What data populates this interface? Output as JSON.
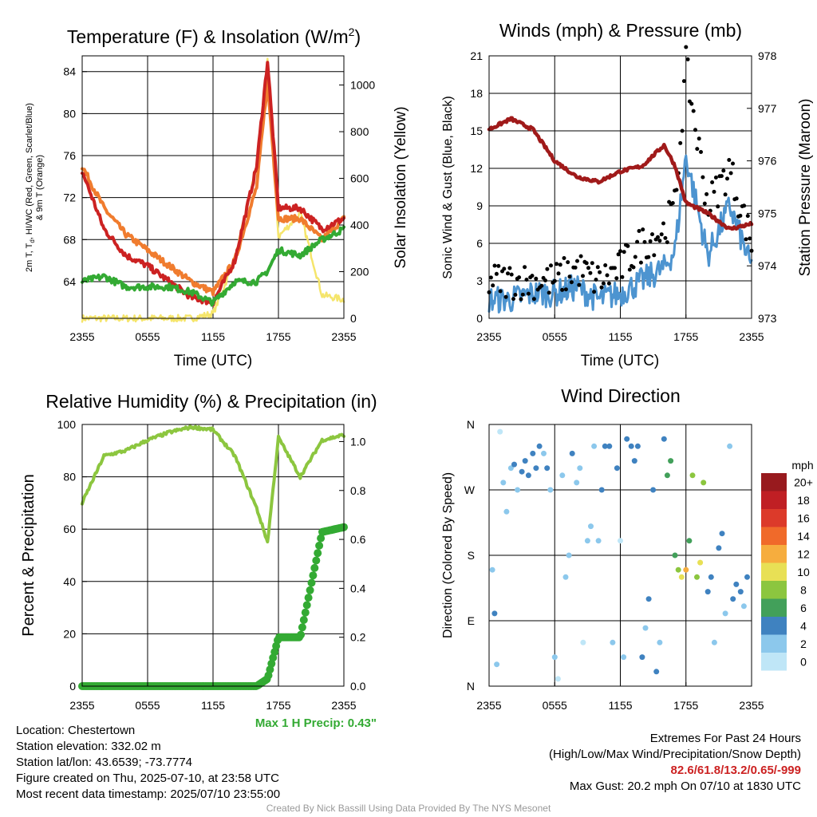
{
  "time_ticks": [
    "2355",
    "0555",
    "1155",
    "1755",
    "2355"
  ],
  "colors": {
    "temperature": "#cc2222",
    "dewpoint": "#33aa33",
    "nine_m_temp": "#f07c2e",
    "solar": "#f5e56b",
    "wind": "#4d94d0",
    "gust": "#000000",
    "pressure": "#a01a1a",
    "rh": "#8cc63f",
    "precip": "#33aa33"
  },
  "charts": {
    "temp": {
      "title_main": "Temperature (F) & Insolation (W/m",
      "title_sup": "2",
      "title_end": ")",
      "ylabel_line1": "2m T, T",
      "ylabel_sub": "d",
      "ylabel_line1_end": ", HI/WC (Red, Green, Scarlet/Blue)",
      "ylabel_line2": "& 9m T (Orange)",
      "y2label": "Solar Insolation (Yellow)",
      "xlabel": "Time (UTC)",
      "yticks": [
        "64",
        "68",
        "72",
        "76",
        "80",
        "84"
      ],
      "y2ticks": [
        "0",
        "200",
        "400",
        "600",
        "800",
        "1000"
      ]
    },
    "winds": {
      "title": "Winds (mph) & Pressure (mb)",
      "ylabel": "Sonic Wind & Gust (Blue, Black)",
      "y2label": "Station Pressure (Maroon)",
      "xlabel": "Time (UTC)",
      "yticks": [
        "0",
        "3",
        "6",
        "9",
        "12",
        "15",
        "18",
        "21"
      ],
      "y2ticks": [
        "973",
        "974",
        "975",
        "976",
        "977",
        "978"
      ]
    },
    "rh": {
      "title": "Relative Humidity (%) & Precipitation (in)",
      "ylabel": "Percent & Precipitation",
      "yticks": [
        "0",
        "20",
        "40",
        "60",
        "80",
        "100"
      ],
      "y2ticks": [
        "0.0",
        "0.2",
        "0.4",
        "0.6",
        "0.8",
        "1.0"
      ],
      "max_precip_label": "Max 1 H Precip: 0.43\""
    },
    "wdir": {
      "title": "Wind Direction",
      "ylabel": "Direction (Colored By Speed)",
      "yticks": [
        "N",
        "E",
        "S",
        "W",
        "N"
      ],
      "legend_title": "mph",
      "legend": [
        {
          "label": "0",
          "color": "#bfe6f7"
        },
        {
          "label": "2",
          "color": "#8cc8ec"
        },
        {
          "label": "4",
          "color": "#3f82c0"
        },
        {
          "label": "6",
          "color": "#42a05a"
        },
        {
          "label": "8",
          "color": "#8cc63f"
        },
        {
          "label": "10",
          "color": "#e8e055"
        },
        {
          "label": "12",
          "color": "#f6ad3e"
        },
        {
          "label": "14",
          "color": "#f06a2a"
        },
        {
          "label": "16",
          "color": "#dc3a2a"
        },
        {
          "label": "18",
          "color": "#c01f24"
        },
        {
          "label": "20+",
          "color": "#981a1e"
        }
      ]
    }
  },
  "chart_data": [
    {
      "type": "line",
      "title": "Temperature (F) & Insolation (W/m2)",
      "x": [
        0,
        2,
        4,
        6,
        8,
        10,
        12,
        14,
        16,
        17,
        18,
        20,
        22,
        24
      ],
      "xlabel": "Time (UTC)",
      "ylim": [
        60.5,
        85.5
      ],
      "y2lim": [
        0,
        1125
      ],
      "series": [
        {
          "name": "2m T",
          "values": [
            74.5,
            69,
            66.5,
            65.5,
            64,
            62.5,
            62,
            66,
            75,
            85,
            71,
            71,
            69,
            70
          ]
        },
        {
          "name": "9m T",
          "values": [
            75,
            71,
            68.5,
            67,
            65.5,
            64,
            63,
            66,
            73,
            83,
            70,
            70,
            68,
            70
          ]
        },
        {
          "name": "Dewpoint",
          "values": [
            64,
            64.5,
            63.5,
            63.5,
            63.5,
            63,
            62,
            64,
            64,
            65,
            67,
            66.5,
            68,
            69
          ]
        },
        {
          "name": "Solar Insolation",
          "axis": "right",
          "values": [
            0,
            0,
            0,
            0,
            0,
            0,
            20,
            250,
            650,
            1100,
            350,
            450,
            100,
            80
          ]
        }
      ]
    },
    {
      "type": "line",
      "title": "Winds (mph) & Pressure (mb)",
      "x": [
        0,
        2,
        4,
        6,
        8,
        10,
        12,
        14,
        16,
        17,
        18,
        20,
        22,
        24
      ],
      "xlabel": "Time (UTC)",
      "ylim": [
        0,
        21
      ],
      "y2lim": [
        973,
        978
      ],
      "series": [
        {
          "name": "Sonic Wind",
          "values": [
            1.5,
            1.5,
            2,
            2,
            2.5,
            1.5,
            2,
            3,
            4,
            5.5,
            13,
            5,
            9,
            4
          ]
        },
        {
          "name": "Gust",
          "values": [
            3,
            3,
            3,
            3,
            4,
            3,
            4,
            6,
            7,
            9,
            20.2,
            9,
            12,
            6
          ]
        },
        {
          "name": "Station Pressure",
          "axis": "right",
          "values": [
            976.6,
            976.8,
            976.6,
            976.0,
            975.7,
            975.6,
            975.8,
            975.9,
            976.3,
            975.9,
            975.2,
            975.0,
            974.7,
            974.8
          ]
        }
      ]
    },
    {
      "type": "line",
      "title": "Relative Humidity (%) & Precipitation (in)",
      "x": [
        0,
        2,
        4,
        6,
        8,
        10,
        12,
        14,
        16,
        17,
        18,
        20,
        22,
        24
      ],
      "ylim": [
        0,
        100
      ],
      "y2lim": [
        0,
        1.07
      ],
      "series": [
        {
          "name": "Relative Humidity",
          "values": [
            70,
            88,
            90,
            94,
            97,
            99,
            98,
            88,
            68,
            55,
            95,
            80,
            94,
            96
          ]
        },
        {
          "name": "Precipitation",
          "axis": "right",
          "values": [
            0,
            0,
            0,
            0,
            0,
            0,
            0,
            0,
            0,
            0.03,
            0.2,
            0.2,
            0.63,
            0.65
          ]
        }
      ]
    },
    {
      "type": "scatter",
      "title": "Wind Direction",
      "ylabel": "Direction (Colored By Speed)",
      "yticks": [
        "N",
        "E",
        "S",
        "W",
        "N"
      ],
      "points": [
        {
          "t": 0.3,
          "dir": 160,
          "speed": 2
        },
        {
          "t": 0.5,
          "dir": 100,
          "speed": 4
        },
        {
          "t": 0.7,
          "dir": 30,
          "speed": 2
        },
        {
          "t": 1.0,
          "dir": 350,
          "speed": 0
        },
        {
          "t": 1.3,
          "dir": 280,
          "speed": 2
        },
        {
          "t": 1.6,
          "dir": 240,
          "speed": 2
        },
        {
          "t": 2.0,
          "dir": 300,
          "speed": 2
        },
        {
          "t": 2.3,
          "dir": 305,
          "speed": 4
        },
        {
          "t": 2.6,
          "dir": 270,
          "speed": 2
        },
        {
          "t": 3.0,
          "dir": 295,
          "speed": 4
        },
        {
          "t": 3.3,
          "dir": 310,
          "speed": 4
        },
        {
          "t": 3.6,
          "dir": 290,
          "speed": 4
        },
        {
          "t": 4.0,
          "dir": 320,
          "speed": 4
        },
        {
          "t": 4.3,
          "dir": 300,
          "speed": 4
        },
        {
          "t": 4.6,
          "dir": 330,
          "speed": 4
        },
        {
          "t": 5.0,
          "dir": 320,
          "speed": 2
        },
        {
          "t": 5.3,
          "dir": 300,
          "speed": 4
        },
        {
          "t": 5.6,
          "dir": 270,
          "speed": 2
        },
        {
          "t": 6.0,
          "dir": 40,
          "speed": 2
        },
        {
          "t": 6.3,
          "dir": 10,
          "speed": 0
        },
        {
          "t": 6.7,
          "dir": 290,
          "speed": 2
        },
        {
          "t": 7.0,
          "dir": 150,
          "speed": 2
        },
        {
          "t": 7.3,
          "dir": 180,
          "speed": 2
        },
        {
          "t": 7.6,
          "dir": 320,
          "speed": 4
        },
        {
          "t": 8.0,
          "dir": 280,
          "speed": 2
        },
        {
          "t": 8.3,
          "dir": 300,
          "speed": 2
        },
        {
          "t": 8.6,
          "dir": 60,
          "speed": 0
        },
        {
          "t": 9.0,
          "dir": 200,
          "speed": 2
        },
        {
          "t": 9.3,
          "dir": 220,
          "speed": 2
        },
        {
          "t": 9.6,
          "dir": 330,
          "speed": 2
        },
        {
          "t": 10.0,
          "dir": 200,
          "speed": 2
        },
        {
          "t": 10.3,
          "dir": 270,
          "speed": 4
        },
        {
          "t": 10.6,
          "dir": 330,
          "speed": 4
        },
        {
          "t": 11.0,
          "dir": 330,
          "speed": 4
        },
        {
          "t": 11.3,
          "dir": 60,
          "speed": 2
        },
        {
          "t": 11.7,
          "dir": 300,
          "speed": 4
        },
        {
          "t": 12.0,
          "dir": 200,
          "speed": 0
        },
        {
          "t": 12.3,
          "dir": 40,
          "speed": 2
        },
        {
          "t": 12.6,
          "dir": 340,
          "speed": 4
        },
        {
          "t": 13.0,
          "dir": 330,
          "speed": 4
        },
        {
          "t": 13.3,
          "dir": 310,
          "speed": 4
        },
        {
          "t": 13.6,
          "dir": 330,
          "speed": 4
        },
        {
          "t": 14.0,
          "dir": 40,
          "speed": 4
        },
        {
          "t": 14.3,
          "dir": 80,
          "speed": 2
        },
        {
          "t": 14.6,
          "dir": 120,
          "speed": 4
        },
        {
          "t": 15.0,
          "dir": 270,
          "speed": 4
        },
        {
          "t": 15.3,
          "dir": 20,
          "speed": 4
        },
        {
          "t": 15.6,
          "dir": 60,
          "speed": 2
        },
        {
          "t": 16.0,
          "dir": 340,
          "speed": 4
        },
        {
          "t": 16.3,
          "dir": 290,
          "speed": 6
        },
        {
          "t": 16.6,
          "dir": 310,
          "speed": 6
        },
        {
          "t": 17.0,
          "dir": 180,
          "speed": 6
        },
        {
          "t": 17.3,
          "dir": 160,
          "speed": 8
        },
        {
          "t": 17.6,
          "dir": 150,
          "speed": 10
        },
        {
          "t": 18.0,
          "dir": 160,
          "speed": 12
        },
        {
          "t": 18.3,
          "dir": 200,
          "speed": 6
        },
        {
          "t": 18.6,
          "dir": 290,
          "speed": 8
        },
        {
          "t": 19.0,
          "dir": 150,
          "speed": 8
        },
        {
          "t": 19.3,
          "dir": 170,
          "speed": 10
        },
        {
          "t": 19.6,
          "dir": 280,
          "speed": 8
        },
        {
          "t": 20.0,
          "dir": 130,
          "speed": 4
        },
        {
          "t": 20.3,
          "dir": 150,
          "speed": 4
        },
        {
          "t": 20.6,
          "dir": 60,
          "speed": 2
        },
        {
          "t": 21.0,
          "dir": 190,
          "speed": 4
        },
        {
          "t": 21.3,
          "dir": 210,
          "speed": 4
        },
        {
          "t": 21.6,
          "dir": 100,
          "speed": 2
        },
        {
          "t": 22.0,
          "dir": 330,
          "speed": 2
        },
        {
          "t": 22.3,
          "dir": 120,
          "speed": 4
        },
        {
          "t": 22.6,
          "dir": 140,
          "speed": 4
        },
        {
          "t": 23.0,
          "dir": 130,
          "speed": 4
        },
        {
          "t": 23.3,
          "dir": 110,
          "speed": 2
        },
        {
          "t": 23.6,
          "dir": 150,
          "speed": 4
        }
      ]
    }
  ],
  "info": {
    "location": "Location: Chestertown",
    "elevation": "Station elevation: 332.02 m",
    "latlon": "Station lat/lon: 43.6539; -73.7774",
    "created": "Figure created on Thu, 2025-07-10, at 23:58 UTC",
    "recent": "Most recent data timestamp: 2025/07/10 23:55:00"
  },
  "extremes": {
    "title": "Extremes For Past 24 Hours",
    "subtitle": "(High/Low/Max Wind/Precipitation/Snow Depth)",
    "values": "82.6/61.8/13.2/0.65/-999",
    "max_gust": "Max Gust: 20.2 mph On 07/10 at 1830 UTC"
  },
  "credit": "Created By Nick Bassill Using Data Provided By The NYS Mesonet"
}
